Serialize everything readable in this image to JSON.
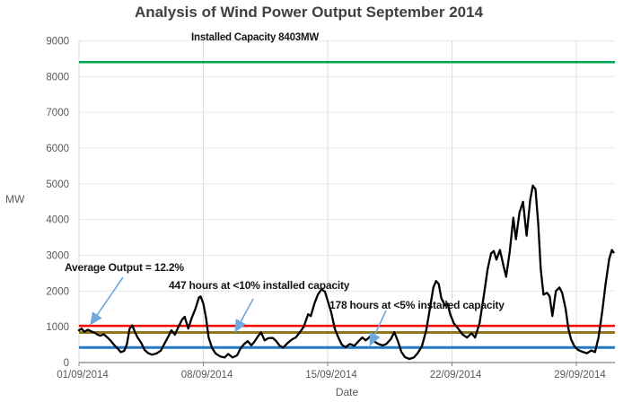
{
  "title": "Analysis of Wind Power Output  September 2014",
  "y_axis": {
    "label": "MW"
  },
  "x_axis": {
    "label": "Date"
  },
  "annotations": {
    "installed_capacity": "Installed Capacity 8403MW",
    "average_output": "Average Output  = 12.2%",
    "under10": "447 hours at <10% installed capacity",
    "under5": "178 hours at <5% installed capacity"
  },
  "colors": {
    "title_text": "#404040",
    "axis_text": "#595959",
    "annotation_text": "#151515",
    "series_line": "#000000",
    "installed_line": "#00A651",
    "average_line": "#FF0000",
    "ten_pct_line": "#8E7619",
    "five_pct_line": "#2479C2",
    "arrow": "#6FA8DC",
    "h_grid": "#E8E8E8",
    "v_grid": "#DCDCDC",
    "x_axis_line": "#808080",
    "y_axis_line": "#D9D9D9"
  },
  "chart_data": {
    "type": "line",
    "title": "Analysis of Wind Power Output  September 2014",
    "xlabel": "Date",
    "ylabel": "MW",
    "ylim": [
      0,
      9000
    ],
    "y_ticks": [
      0,
      1000,
      2000,
      3000,
      4000,
      5000,
      6000,
      7000,
      8000,
      9000
    ],
    "x_ticks": [
      {
        "label": "01/09/2014",
        "day": 0
      },
      {
        "label": "08/09/2014",
        "day": 7
      },
      {
        "label": "15/09/2014",
        "day": 14
      },
      {
        "label": "22/09/2014",
        "day": 21
      },
      {
        "label": "29/09/2014",
        "day": 28
      }
    ],
    "x_unit": "days since 01/09/2014 00:00",
    "grid": true,
    "legend": "none",
    "reference_lines": [
      {
        "name": "Installed Capacity",
        "value": 8403,
        "color_key": "installed_line",
        "width": 2.5
      },
      {
        "name": "Average Output 12.2%",
        "value": 1025,
        "color_key": "average_line",
        "width": 2.5
      },
      {
        "name": "10% installed capacity",
        "value": 840,
        "color_key": "ten_pct_line",
        "width": 3
      },
      {
        "name": "5% installed capacity",
        "value": 420,
        "color_key": "five_pct_line",
        "width": 3
      }
    ],
    "arrows": [
      {
        "name": "arrow-to-average-line",
        "from": [
          137,
          309
        ],
        "to": [
          102,
          360
        ]
      },
      {
        "name": "arrow-to-10pct-line",
        "from": [
          282,
          333
        ],
        "to": [
          263,
          368
        ]
      },
      {
        "name": "arrow-to-5pct-line",
        "from": [
          430,
          346
        ],
        "to": [
          413,
          383
        ]
      }
    ],
    "series": [
      {
        "name": "Wind power output (MW)",
        "color_key": "series_line",
        "points": [
          [
            0.0,
            900
          ],
          [
            0.15,
            950
          ],
          [
            0.3,
            860
          ],
          [
            0.5,
            920
          ],
          [
            0.7,
            870
          ],
          [
            0.9,
            830
          ],
          [
            1.05,
            780
          ],
          [
            1.2,
            750
          ],
          [
            1.4,
            790
          ],
          [
            1.6,
            700
          ],
          [
            1.8,
            600
          ],
          [
            2.0,
            480
          ],
          [
            2.2,
            380
          ],
          [
            2.35,
            290
          ],
          [
            2.55,
            330
          ],
          [
            2.7,
            520
          ],
          [
            2.85,
            950
          ],
          [
            3.0,
            1040
          ],
          [
            3.15,
            850
          ],
          [
            3.3,
            700
          ],
          [
            3.5,
            550
          ],
          [
            3.7,
            350
          ],
          [
            3.9,
            260
          ],
          [
            4.1,
            220
          ],
          [
            4.35,
            250
          ],
          [
            4.6,
            330
          ],
          [
            4.8,
            520
          ],
          [
            5.0,
            700
          ],
          [
            5.2,
            900
          ],
          [
            5.4,
            780
          ],
          [
            5.6,
            1000
          ],
          [
            5.8,
            1200
          ],
          [
            5.95,
            1280
          ],
          [
            6.15,
            950
          ],
          [
            6.35,
            1250
          ],
          [
            6.55,
            1500
          ],
          [
            6.75,
            1820
          ],
          [
            6.85,
            1850
          ],
          [
            7.0,
            1650
          ],
          [
            7.15,
            1250
          ],
          [
            7.3,
            700
          ],
          [
            7.5,
            400
          ],
          [
            7.7,
            250
          ],
          [
            7.95,
            170
          ],
          [
            8.2,
            140
          ],
          [
            8.4,
            240
          ],
          [
            8.65,
            140
          ],
          [
            8.9,
            200
          ],
          [
            9.1,
            400
          ],
          [
            9.3,
            520
          ],
          [
            9.5,
            600
          ],
          [
            9.7,
            480
          ],
          [
            9.9,
            600
          ],
          [
            10.1,
            750
          ],
          [
            10.25,
            840
          ],
          [
            10.45,
            620
          ],
          [
            10.65,
            680
          ],
          [
            10.9,
            690
          ],
          [
            11.1,
            600
          ],
          [
            11.3,
            470
          ],
          [
            11.5,
            420
          ],
          [
            11.75,
            550
          ],
          [
            12.0,
            650
          ],
          [
            12.2,
            700
          ],
          [
            12.4,
            820
          ],
          [
            12.65,
            1000
          ],
          [
            12.9,
            1350
          ],
          [
            13.05,
            1300
          ],
          [
            13.25,
            1650
          ],
          [
            13.45,
            1900
          ],
          [
            13.65,
            2050
          ],
          [
            13.85,
            1980
          ],
          [
            14.05,
            1650
          ],
          [
            14.2,
            1400
          ],
          [
            14.4,
            950
          ],
          [
            14.6,
            700
          ],
          [
            14.8,
            500
          ],
          [
            15.0,
            430
          ],
          [
            15.25,
            520
          ],
          [
            15.5,
            470
          ],
          [
            15.75,
            600
          ],
          [
            15.95,
            700
          ],
          [
            16.15,
            620
          ],
          [
            16.4,
            730
          ],
          [
            16.6,
            600
          ],
          [
            16.85,
            520
          ],
          [
            17.1,
            480
          ],
          [
            17.3,
            520
          ],
          [
            17.55,
            650
          ],
          [
            17.75,
            850
          ],
          [
            17.95,
            600
          ],
          [
            18.15,
            300
          ],
          [
            18.35,
            150
          ],
          [
            18.6,
            100
          ],
          [
            18.85,
            140
          ],
          [
            19.05,
            250
          ],
          [
            19.3,
            450
          ],
          [
            19.55,
            900
          ],
          [
            19.75,
            1500
          ],
          [
            19.95,
            2100
          ],
          [
            20.1,
            2280
          ],
          [
            20.25,
            2200
          ],
          [
            20.4,
            1800
          ],
          [
            20.6,
            1600
          ],
          [
            20.75,
            1650
          ],
          [
            20.9,
            1350
          ],
          [
            21.1,
            1100
          ],
          [
            21.35,
            950
          ],
          [
            21.6,
            780
          ],
          [
            21.85,
            700
          ],
          [
            22.1,
            820
          ],
          [
            22.3,
            700
          ],
          [
            22.55,
            1100
          ],
          [
            22.8,
            1900
          ],
          [
            23.0,
            2600
          ],
          [
            23.2,
            3050
          ],
          [
            23.35,
            3120
          ],
          [
            23.5,
            2880
          ],
          [
            23.7,
            3150
          ],
          [
            23.9,
            2700
          ],
          [
            24.05,
            2400
          ],
          [
            24.25,
            3100
          ],
          [
            24.45,
            4050
          ],
          [
            24.6,
            3450
          ],
          [
            24.8,
            4200
          ],
          [
            25.0,
            4500
          ],
          [
            25.2,
            3550
          ],
          [
            25.4,
            4550
          ],
          [
            25.55,
            4950
          ],
          [
            25.7,
            4850
          ],
          [
            25.85,
            3900
          ],
          [
            26.0,
            2600
          ],
          [
            26.15,
            1900
          ],
          [
            26.35,
            1950
          ],
          [
            26.5,
            1850
          ],
          [
            26.65,
            1300
          ],
          [
            26.85,
            2000
          ],
          [
            27.05,
            2100
          ],
          [
            27.2,
            1950
          ],
          [
            27.4,
            1500
          ],
          [
            27.55,
            950
          ],
          [
            27.7,
            650
          ],
          [
            27.9,
            450
          ],
          [
            28.1,
            350
          ],
          [
            28.35,
            300
          ],
          [
            28.6,
            260
          ],
          [
            28.85,
            340
          ],
          [
            29.05,
            290
          ],
          [
            29.25,
            700
          ],
          [
            29.45,
            1400
          ],
          [
            29.65,
            2200
          ],
          [
            29.85,
            2900
          ],
          [
            30.0,
            3150
          ],
          [
            30.1,
            3080
          ]
        ]
      }
    ]
  }
}
